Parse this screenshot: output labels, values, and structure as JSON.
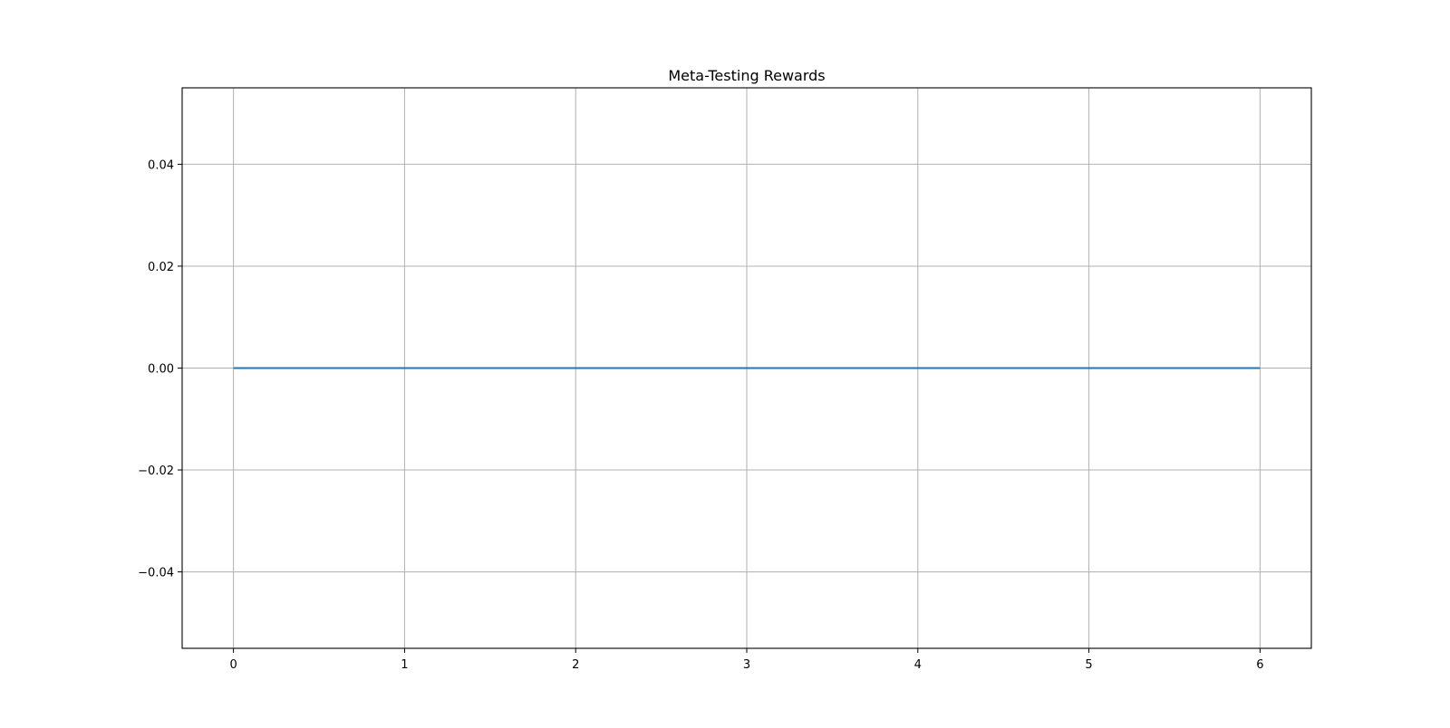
{
  "chart_data": {
    "type": "line",
    "title": "Meta-Testing Rewards",
    "xlabel": "",
    "ylabel": "",
    "x": [
      0,
      1,
      2,
      3,
      4,
      5,
      6
    ],
    "series": [
      {
        "values": [
          0,
          0,
          0,
          0,
          0,
          0,
          0
        ],
        "color": "#1f77b4"
      }
    ],
    "xlim": [
      -0.3,
      6.3
    ],
    "ylim": [
      -0.055,
      0.055
    ],
    "xticks": [
      0,
      1,
      2,
      3,
      4,
      5,
      6
    ],
    "xtick_labels": [
      "0",
      "1",
      "2",
      "3",
      "4",
      "5",
      "6"
    ],
    "yticks": [
      -0.04,
      -0.02,
      0.0,
      0.02,
      0.04
    ],
    "ytick_labels": [
      "−0.04",
      "−0.02",
      "0.00",
      "0.02",
      "0.04"
    ],
    "grid": true,
    "legend": false
  }
}
